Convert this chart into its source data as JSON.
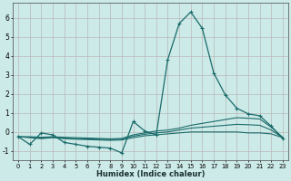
{
  "xlabel": "Humidex (Indice chaleur)",
  "background_color": "#cceae7",
  "grid_color": "#b8b8b8",
  "line_color": "#1a6b6b",
  "xlim": [
    -0.5,
    23.5
  ],
  "ylim": [
    -1.5,
    6.8
  ],
  "yticks": [
    -1,
    0,
    1,
    2,
    3,
    4,
    5,
    6
  ],
  "series_main": {
    "x": [
      0,
      1,
      2,
      3,
      4,
      5,
      6,
      7,
      8,
      9,
      10,
      11,
      12,
      13,
      14,
      15,
      16,
      17,
      18,
      19,
      20,
      21,
      22,
      23
    ],
    "y": [
      -0.25,
      -0.65,
      -0.05,
      -0.15,
      -0.55,
      -0.65,
      -0.75,
      -0.8,
      -0.85,
      -1.1,
      0.55,
      0.05,
      -0.15,
      3.8,
      5.7,
      6.3,
      5.45,
      3.1,
      1.95,
      1.25,
      0.95,
      0.85,
      0.3,
      -0.35
    ]
  },
  "series_flat": [
    {
      "x": [
        0,
        1,
        2,
        3,
        4,
        5,
        6,
        7,
        8,
        9,
        10,
        11,
        12,
        13,
        14,
        15,
        16,
        17,
        18,
        19,
        20,
        21,
        22,
        23
      ],
      "y": [
        -0.25,
        -0.3,
        -0.35,
        -0.3,
        -0.35,
        -0.38,
        -0.4,
        -0.42,
        -0.44,
        -0.42,
        -0.3,
        -0.2,
        -0.15,
        -0.1,
        -0.05,
        0.0,
        0.0,
        0.0,
        0.0,
        0.0,
        -0.05,
        -0.05,
        -0.1,
        -0.3
      ]
    },
    {
      "x": [
        0,
        1,
        2,
        3,
        4,
        5,
        6,
        7,
        8,
        9,
        10,
        11,
        12,
        13,
        14,
        15,
        16,
        17,
        18,
        19,
        20,
        21,
        22,
        23
      ],
      "y": [
        -0.25,
        -0.28,
        -0.32,
        -0.28,
        -0.32,
        -0.35,
        -0.36,
        -0.38,
        -0.4,
        -0.38,
        -0.22,
        -0.12,
        -0.05,
        0.0,
        0.1,
        0.2,
        0.25,
        0.3,
        0.35,
        0.4,
        0.38,
        0.35,
        0.1,
        -0.3
      ]
    },
    {
      "x": [
        0,
        1,
        2,
        3,
        4,
        5,
        6,
        7,
        8,
        9,
        10,
        11,
        12,
        13,
        14,
        15,
        16,
        17,
        18,
        19,
        20,
        21,
        22,
        23
      ],
      "y": [
        -0.25,
        -0.25,
        -0.28,
        -0.25,
        -0.28,
        -0.3,
        -0.32,
        -0.34,
        -0.36,
        -0.34,
        -0.15,
        -0.05,
        0.05,
        0.1,
        0.2,
        0.35,
        0.45,
        0.55,
        0.65,
        0.75,
        0.72,
        0.68,
        0.25,
        -0.28
      ]
    }
  ]
}
